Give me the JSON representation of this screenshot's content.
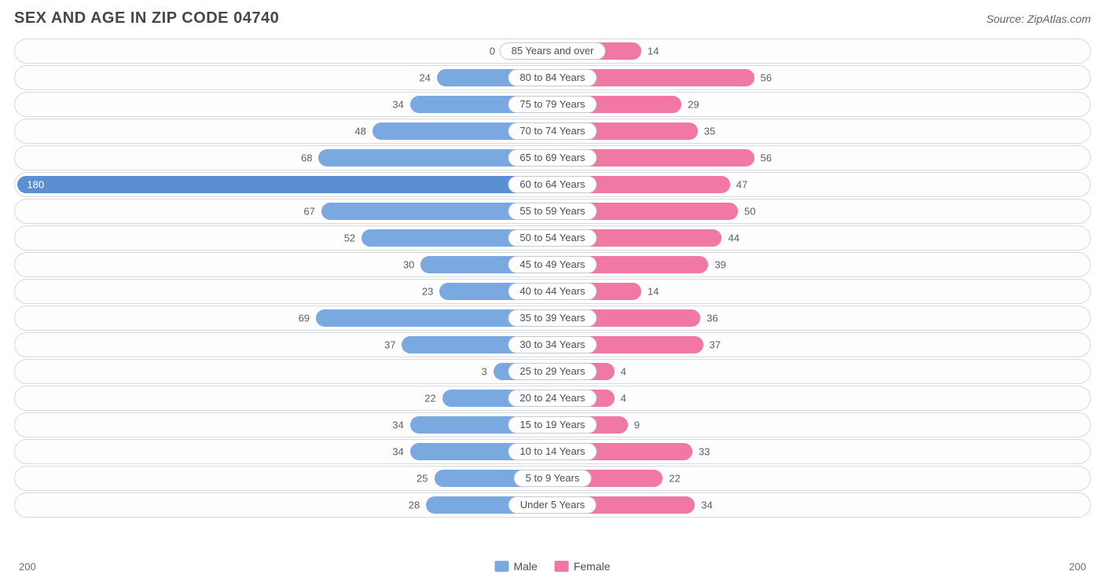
{
  "title": "SEX AND AGE IN ZIP CODE 04740",
  "source": "Source: ZipAtlas.com",
  "chart": {
    "type": "diverging-bar",
    "axis_max": 200,
    "axis_label_left": "200",
    "axis_label_right": "200",
    "male_color": "#7aa8e0",
    "female_color": "#f177a5",
    "male_color_strong": "#5b8fd4",
    "track_border": "#d7dadc",
    "track_bg": "#fdfdfd",
    "label_border": "#c8cbce",
    "text_color": "#4a4f53",
    "value_text_color": "#5a5f63",
    "background_color": "#ffffff",
    "title_color": "#42484d",
    "title_fontsize": 20,
    "label_fontsize": 13,
    "legend": {
      "male": "Male",
      "female": "Female"
    },
    "rows": [
      {
        "label": "85 Years and over",
        "male": 0,
        "female": 14
      },
      {
        "label": "80 to 84 Years",
        "male": 24,
        "female": 56
      },
      {
        "label": "75 to 79 Years",
        "male": 34,
        "female": 29
      },
      {
        "label": "70 to 74 Years",
        "male": 48,
        "female": 35
      },
      {
        "label": "65 to 69 Years",
        "male": 68,
        "female": 56
      },
      {
        "label": "60 to 64 Years",
        "male": 180,
        "female": 47
      },
      {
        "label": "55 to 59 Years",
        "male": 67,
        "female": 50
      },
      {
        "label": "50 to 54 Years",
        "male": 52,
        "female": 44
      },
      {
        "label": "45 to 49 Years",
        "male": 30,
        "female": 39
      },
      {
        "label": "40 to 44 Years",
        "male": 23,
        "female": 14
      },
      {
        "label": "35 to 39 Years",
        "male": 69,
        "female": 36
      },
      {
        "label": "30 to 34 Years",
        "male": 37,
        "female": 37
      },
      {
        "label": "25 to 29 Years",
        "male": 3,
        "female": 4
      },
      {
        "label": "20 to 24 Years",
        "male": 22,
        "female": 4
      },
      {
        "label": "15 to 19 Years",
        "male": 34,
        "female": 9
      },
      {
        "label": "10 to 14 Years",
        "male": 34,
        "female": 33
      },
      {
        "label": "5 to 9 Years",
        "male": 25,
        "female": 22
      },
      {
        "label": "Under 5 Years",
        "male": 28,
        "female": 34
      }
    ]
  }
}
